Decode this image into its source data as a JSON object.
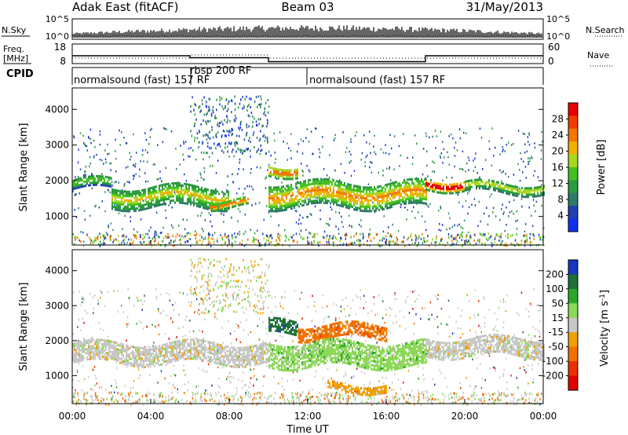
{
  "header": {
    "station": "Adak East (fitACF)",
    "beam": "Beam 03",
    "date": "31/May/2013"
  },
  "noise_panel": {
    "left_label": "N.Sky",
    "right_label": "N.Search",
    "left_ticks": [
      "10^5",
      "10^0"
    ],
    "right_ticks": [
      "10^5",
      "10^0"
    ]
  },
  "freq_panel": {
    "left_label_1": "Freq.",
    "left_label_2": "[MHz]",
    "right_label": "Nave",
    "left_ticks": [
      "18",
      "8"
    ],
    "right_ticks": [
      "60",
      "0"
    ]
  },
  "cpid": {
    "label": "CPID",
    "modes": [
      "normalsound (fast) 157 RF",
      "rbsp 200 RF",
      "normalsound (fast) 157 RF"
    ]
  },
  "chart_data": [
    {
      "type": "heatmap",
      "name": "power",
      "ylabel": "Slant Range [km]",
      "yticks": [
        "1000",
        "2000",
        "3000",
        "4000"
      ],
      "ylim": [
        200,
        4600
      ],
      "colorbar_label": "Power [dB]",
      "colorbar_ticks": [
        "4",
        "8",
        "12",
        "16",
        "20",
        "24",
        "28"
      ],
      "colors": [
        "#1030f0",
        "#2040b0",
        "#2e7a6a",
        "#2c9a3e",
        "#44c020",
        "#a8d820",
        "#f0b000",
        "#f07800",
        "#f03c00",
        "#e80000"
      ],
      "echo_bands": [
        {
          "t": [
            0.0,
            2.0
          ],
          "range_km": [
            1800,
            2100
          ],
          "power_db": 12
        },
        {
          "t": [
            2.0,
            8.0
          ],
          "range_km": [
            1300,
            1900
          ],
          "power_db": 16
        },
        {
          "t": [
            7.0,
            9.0
          ],
          "range_km": [
            1300,
            1500
          ],
          "power_db": 24
        },
        {
          "t": [
            10.0,
            11.5
          ],
          "range_km": [
            2200,
            2500
          ],
          "power_db": 24
        },
        {
          "t": [
            10.0,
            18.0
          ],
          "range_km": [
            1300,
            2000
          ],
          "power_db": 20
        },
        {
          "t": [
            18.0,
            20.0
          ],
          "range_km": [
            1800,
            2100
          ],
          "power_db": 28
        },
        {
          "t": [
            20.0,
            24.0
          ],
          "range_km": [
            1700,
            2000
          ],
          "power_db": 16
        }
      ]
    },
    {
      "type": "heatmap",
      "name": "velocity",
      "ylabel": "Slant Range [km]",
      "yticks": [
        "1000",
        "2000",
        "3000",
        "4000"
      ],
      "ylim": [
        200,
        4600
      ],
      "xlabel": "Time UT",
      "xticks": [
        "00:00",
        "04:00",
        "08:00",
        "12:00",
        "16:00",
        "20:00",
        "00:00"
      ],
      "colorbar_label": "Velocity [m s",
      "colorbar_label_sup": "-1",
      "colorbar_label_end": "]",
      "colorbar_ticks": [
        "200",
        "100",
        "50",
        "15",
        "-15",
        "-50",
        "-100",
        "-200"
      ],
      "colors": [
        "#1838c0",
        "#1e6f3a",
        "#2aa82a",
        "#8cd858",
        "#c8c8c8",
        "#f0a000",
        "#f07000",
        "#e83000",
        "#e00000"
      ],
      "echo_bands": [
        {
          "t": [
            0.0,
            10.0
          ],
          "range_km": [
            1400,
            2000
          ],
          "velocity": 0
        },
        {
          "t": [
            10.0,
            11.5
          ],
          "range_km": [
            2200,
            2600
          ],
          "velocity": 150
        },
        {
          "t": [
            11.5,
            16.0
          ],
          "range_km": [
            2100,
            2500
          ],
          "velocity": -60
        },
        {
          "t": [
            10.0,
            18.0
          ],
          "range_km": [
            1300,
            2000
          ],
          "velocity": 40
        },
        {
          "t": [
            13.0,
            16.0
          ],
          "range_km": [
            600,
            800
          ],
          "velocity": -50
        },
        {
          "t": [
            18.0,
            24.0
          ],
          "range_km": [
            1600,
            2100
          ],
          "velocity": 0
        }
      ]
    }
  ]
}
